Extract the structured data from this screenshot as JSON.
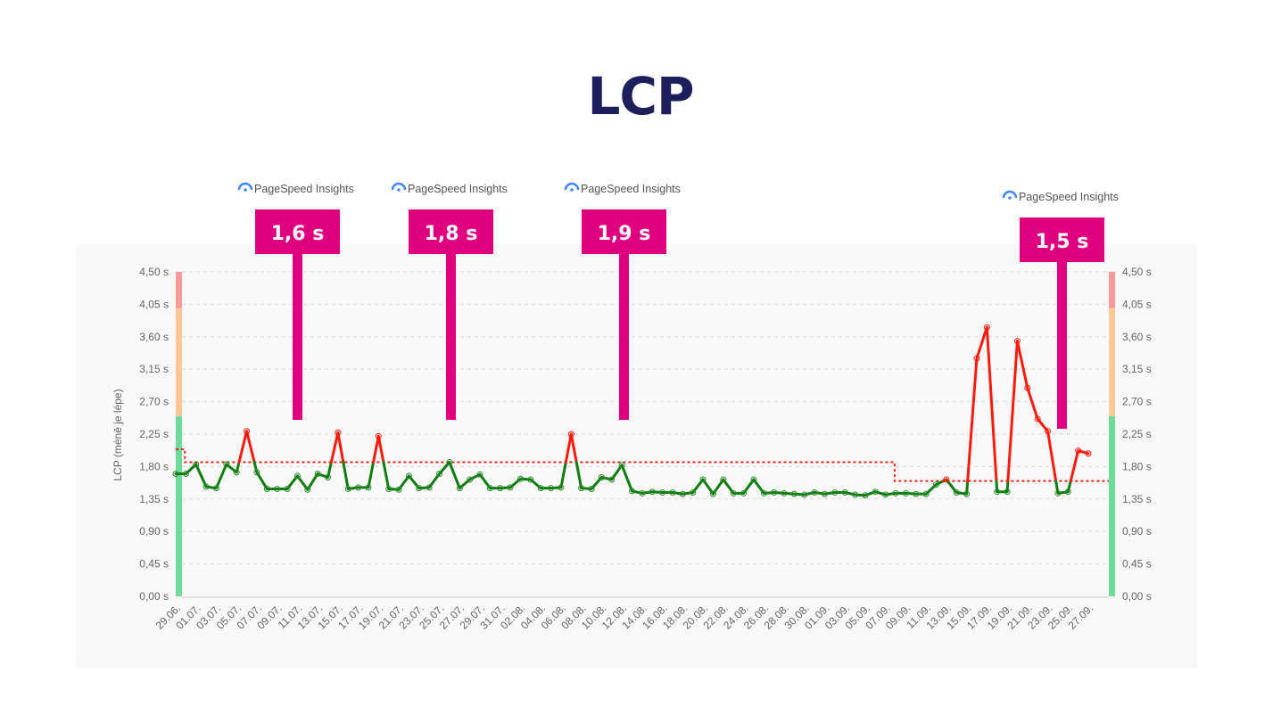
{
  "title": "LCP",
  "chart_data": {
    "type": "line",
    "title": "LCP",
    "ylabel": "LCP (méně je lépe)",
    "xlabel": "",
    "ylim": [
      0,
      4.5
    ],
    "y_ticks": [
      "0,00 s",
      "0,45 s",
      "0,90 s",
      "1,35 s",
      "1,80 s",
      "2,25 s",
      "2,70 s",
      "3,15 s",
      "3,60 s",
      "4,05 s",
      "4,50 s"
    ],
    "y_tick_values": [
      0,
      0.45,
      0.9,
      1.35,
      1.8,
      2.25,
      2.7,
      3.15,
      3.6,
      4.05,
      4.5
    ],
    "grid": true,
    "x_tick_labels": [
      "29.06.",
      "01.07.",
      "03.07.",
      "05.07.",
      "07.07.",
      "09.07.",
      "11.07.",
      "13.07.",
      "15.07.",
      "17.07.",
      "19.07.",
      "21.07.",
      "23.07.",
      "25.07.",
      "27.07.",
      "29.07.",
      "31.07.",
      "02.08.",
      "04.08.",
      "06.08.",
      "08.08.",
      "10.08.",
      "12.08.",
      "14.08.",
      "16.08.",
      "18.08.",
      "20.08.",
      "22.08.",
      "24.08.",
      "26.08.",
      "28.08.",
      "30.08.",
      "01.09.",
      "03.09.",
      "05.09.",
      "07.09.",
      "09.09.",
      "11.09.",
      "13.09.",
      "15.09.",
      "17.09.",
      "19.09.",
      "21.09.",
      "23.09.",
      "25.09.",
      "27.09."
    ],
    "x_range": [
      "29.06.",
      "27.09."
    ],
    "values": [
      1.7,
      1.7,
      1.83,
      1.52,
      1.5,
      1.83,
      1.72,
      2.29,
      1.72,
      1.49,
      1.49,
      1.49,
      1.67,
      1.48,
      1.7,
      1.65,
      2.27,
      1.49,
      1.51,
      1.51,
      2.22,
      1.49,
      1.48,
      1.67,
      1.5,
      1.51,
      1.7,
      1.86,
      1.5,
      1.62,
      1.69,
      1.5,
      1.5,
      1.51,
      1.63,
      1.62,
      1.5,
      1.5,
      1.51,
      2.25,
      1.5,
      1.49,
      1.65,
      1.62,
      1.82,
      1.46,
      1.43,
      1.45,
      1.44,
      1.44,
      1.42,
      1.44,
      1.62,
      1.42,
      1.62,
      1.43,
      1.43,
      1.62,
      1.43,
      1.44,
      1.43,
      1.42,
      1.41,
      1.44,
      1.42,
      1.44,
      1.44,
      1.41,
      1.4,
      1.45,
      1.41,
      1.43,
      1.43,
      1.42,
      1.42,
      1.55,
      1.62,
      1.44,
      1.42,
      3.3,
      3.73,
      1.45,
      1.45,
      3.54,
      2.89,
      2.46,
      2.29,
      1.43,
      1.45,
      2.02,
      1.98
    ],
    "threshold": {
      "segments": [
        {
          "from_index": 0,
          "to_index": 1,
          "value": 2.04
        },
        {
          "from_index": 1,
          "to_index": 71,
          "value": 1.86
        },
        {
          "from_index": 71,
          "to_index": 91,
          "value": 1.6
        }
      ],
      "color": "#e8241f"
    },
    "colors": {
      "below": "#0f7d0f",
      "above": "#ff1a0d"
    },
    "bands": [
      {
        "from": 0,
        "to": 2.5,
        "color": "#6ddc98"
      },
      {
        "from": 2.5,
        "to": 4.0,
        "color": "#ffc896"
      },
      {
        "from": 4.0,
        "to": 4.5,
        "color": "#ff9a9a"
      }
    ],
    "annotations": [
      {
        "source": "PageSpeed Insights",
        "label": "1,6 s",
        "date": "10.07."
      },
      {
        "source": "PageSpeed Insights",
        "label": "1,8 s",
        "date": "25.07."
      },
      {
        "source": "PageSpeed Insights",
        "label": "1,9 s",
        "date": "12.08."
      },
      {
        "source": "PageSpeed Insights",
        "label": "1,5 s",
        "date": "24.09."
      }
    ],
    "annotation_color": "#e0007f"
  }
}
